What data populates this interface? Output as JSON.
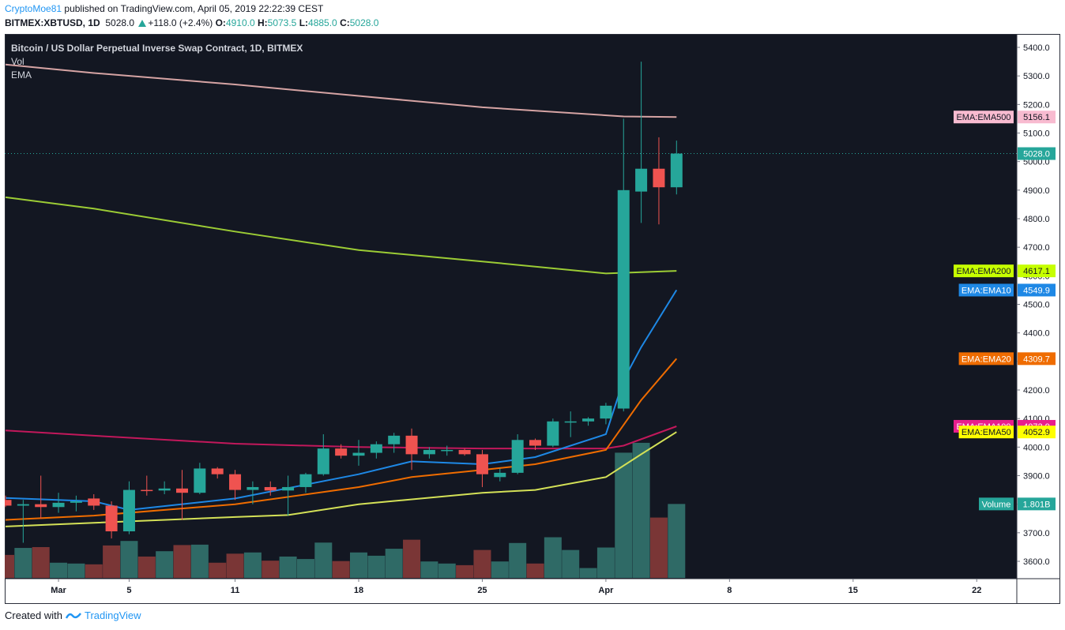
{
  "header": {
    "author": "CryptoMoe81",
    "published": "published on TradingView.com, April 05, 2019 22:22:39 CEST",
    "symbol": "BITMEX:XBTUSD, 1D",
    "last": "5028.0",
    "change": "+118.0 (+2.4%)",
    "o_label": "O:",
    "o_value": "4910.0",
    "h_label": "H:",
    "h_value": "5073.5",
    "l_label": "L:",
    "l_value": "4885.0",
    "c_label": "C:",
    "c_value": "5028.0"
  },
  "footer": {
    "created_with": "Created with",
    "brand": "TradingView"
  },
  "colors": {
    "background": "#131722",
    "up": "#26a69a",
    "down": "#ef5350",
    "ema10": "#1e88e5",
    "ema20": "#ef6c00",
    "ema50": "#d4e157",
    "ema100": "#c2185b",
    "ema200": "#9ccc35",
    "ema500": "#d6a4a4",
    "price_line": "#26a69a"
  },
  "chart_data": {
    "type": "candlestick",
    "title": "Bitcoin / US Dollar Perpetual Inverse Swap Contract, 1D, BITMEX",
    "legend": [
      "Vol",
      "EMA"
    ],
    "ylim": [
      3530,
      5430
    ],
    "y_ticks": [
      "3600.0",
      "3700.0",
      "3800.0",
      "3900.0",
      "4000.0",
      "4100.0",
      "4200.0",
      "4300.0",
      "4400.0",
      "4500.0",
      "4600.0",
      "4700.0",
      "4800.0",
      "4900.0",
      "5000.0",
      "5100.0",
      "5200.0",
      "5300.0",
      "5400.0"
    ],
    "x_ticks": [
      {
        "label": "Mar",
        "date": "2019-03-01"
      },
      {
        "label": "5",
        "date": "2019-03-05"
      },
      {
        "label": "11",
        "date": "2019-03-11"
      },
      {
        "label": "18",
        "date": "2019-03-18"
      },
      {
        "label": "25",
        "date": "2019-03-25"
      },
      {
        "label": "Apr",
        "date": "2019-04-01"
      },
      {
        "label": "8",
        "date": "2019-04-08"
      },
      {
        "label": "15",
        "date": "2019-04-15"
      },
      {
        "label": "22",
        "date": "2019-04-22"
      }
    ],
    "x_range": [
      "2019-02-26",
      "2019-04-27"
    ],
    "candles": [
      {
        "date": "2019-02-26",
        "o": 3815,
        "h": 3830,
        "l": 3790,
        "c": 3795
      },
      {
        "date": "2019-02-27",
        "o": 3795,
        "h": 3815,
        "l": 3665,
        "c": 3800
      },
      {
        "date": "2019-02-28",
        "o": 3800,
        "h": 3900,
        "l": 3750,
        "c": 3790
      },
      {
        "date": "2019-03-01",
        "o": 3790,
        "h": 3840,
        "l": 3770,
        "c": 3805
      },
      {
        "date": "2019-03-02",
        "o": 3805,
        "h": 3830,
        "l": 3775,
        "c": 3810
      },
      {
        "date": "2019-03-03",
        "o": 3820,
        "h": 3835,
        "l": 3780,
        "c": 3795
      },
      {
        "date": "2019-03-04",
        "o": 3795,
        "h": 3810,
        "l": 3680,
        "c": 3705
      },
      {
        "date": "2019-03-05",
        "o": 3705,
        "h": 3880,
        "l": 3695,
        "c": 3850
      },
      {
        "date": "2019-03-06",
        "o": 3850,
        "h": 3900,
        "l": 3830,
        "c": 3848
      },
      {
        "date": "2019-03-07",
        "o": 3848,
        "h": 3880,
        "l": 3835,
        "c": 3855
      },
      {
        "date": "2019-03-08",
        "o": 3855,
        "h": 3920,
        "l": 3745,
        "c": 3840
      },
      {
        "date": "2019-03-09",
        "o": 3840,
        "h": 3945,
        "l": 3835,
        "c": 3925
      },
      {
        "date": "2019-03-10",
        "o": 3925,
        "h": 3930,
        "l": 3890,
        "c": 3905
      },
      {
        "date": "2019-03-11",
        "o": 3905,
        "h": 3920,
        "l": 3815,
        "c": 3850
      },
      {
        "date": "2019-03-12",
        "o": 3850,
        "h": 3880,
        "l": 3800,
        "c": 3860
      },
      {
        "date": "2019-03-13",
        "o": 3860,
        "h": 3880,
        "l": 3830,
        "c": 3848
      },
      {
        "date": "2019-03-14",
        "o": 3848,
        "h": 3900,
        "l": 3760,
        "c": 3860
      },
      {
        "date": "2019-03-15",
        "o": 3860,
        "h": 3910,
        "l": 3840,
        "c": 3905
      },
      {
        "date": "2019-03-16",
        "o": 3905,
        "h": 4045,
        "l": 3900,
        "c": 3995
      },
      {
        "date": "2019-03-17",
        "o": 3995,
        "h": 4010,
        "l": 3960,
        "c": 3970
      },
      {
        "date": "2019-03-18",
        "o": 3970,
        "h": 4025,
        "l": 3935,
        "c": 3980
      },
      {
        "date": "2019-03-19",
        "o": 3980,
        "h": 4020,
        "l": 3960,
        "c": 4010
      },
      {
        "date": "2019-03-20",
        "o": 4010,
        "h": 4050,
        "l": 3980,
        "c": 4040
      },
      {
        "date": "2019-03-21",
        "o": 4040,
        "h": 4065,
        "l": 3920,
        "c": 3975
      },
      {
        "date": "2019-03-22",
        "o": 3975,
        "h": 4000,
        "l": 3960,
        "c": 3990
      },
      {
        "date": "2019-03-23",
        "o": 3990,
        "h": 4005,
        "l": 3970,
        "c": 3990
      },
      {
        "date": "2019-03-24",
        "o": 3990,
        "h": 3995,
        "l": 3970,
        "c": 3975
      },
      {
        "date": "2019-03-25",
        "o": 3975,
        "h": 3990,
        "l": 3860,
        "c": 3905
      },
      {
        "date": "2019-03-26",
        "o": 3895,
        "h": 3925,
        "l": 3880,
        "c": 3910
      },
      {
        "date": "2019-03-27",
        "o": 3910,
        "h": 4045,
        "l": 3905,
        "c": 4025
      },
      {
        "date": "2019-03-28",
        "o": 4025,
        "h": 4030,
        "l": 3990,
        "c": 4005
      },
      {
        "date": "2019-03-29",
        "o": 4005,
        "h": 4100,
        "l": 4000,
        "c": 4090
      },
      {
        "date": "2019-03-30",
        "o": 4090,
        "h": 4125,
        "l": 4035,
        "c": 4090
      },
      {
        "date": "2019-03-31",
        "o": 4090,
        "h": 4105,
        "l": 4075,
        "c": 4100
      },
      {
        "date": "2019-04-01",
        "o": 4100,
        "h": 4155,
        "l": 4080,
        "c": 4145
      },
      {
        "date": "2019-04-02",
        "o": 4135,
        "h": 5150,
        "l": 4125,
        "c": 4900
      },
      {
        "date": "2019-04-03",
        "o": 4895,
        "h": 5350,
        "l": 4785,
        "c": 4975
      },
      {
        "date": "2019-04-04",
        "o": 4975,
        "h": 5085,
        "l": 4780,
        "c": 4910
      },
      {
        "date": "2019-04-05",
        "o": 4910,
        "h": 5073.5,
        "l": 4885,
        "c": 5028
      }
    ],
    "volume_unit": "B",
    "volumes": [
      0.56,
      0.73,
      0.75,
      0.37,
      0.35,
      0.33,
      0.79,
      0.9,
      0.52,
      0.65,
      0.8,
      0.81,
      0.37,
      0.59,
      0.62,
      0.42,
      0.52,
      0.46,
      0.86,
      0.41,
      0.62,
      0.54,
      0.71,
      0.93,
      0.4,
      0.35,
      0.31,
      0.68,
      0.4,
      0.85,
      0.35,
      0.99,
      0.68,
      0.24,
      0.74,
      3.05,
      3.29,
      1.47,
      1.801
    ],
    "ema_series": [
      {
        "name": "EMA500",
        "points": [
          [
            "2019-02-26",
            5340
          ],
          [
            "2019-03-03",
            5310
          ],
          [
            "2019-03-11",
            5270
          ],
          [
            "2019-03-18",
            5230
          ],
          [
            "2019-03-25",
            5190
          ],
          [
            "2019-04-02",
            5158
          ],
          [
            "2019-04-05",
            5156.1
          ]
        ]
      },
      {
        "name": "EMA200",
        "points": [
          [
            "2019-02-26",
            4875
          ],
          [
            "2019-03-03",
            4835
          ],
          [
            "2019-03-11",
            4755
          ],
          [
            "2019-03-18",
            4690
          ],
          [
            "2019-03-25",
            4650
          ],
          [
            "2019-04-01",
            4608
          ],
          [
            "2019-04-05",
            4617.1
          ]
        ]
      },
      {
        "name": "EMA100",
        "points": [
          [
            "2019-02-26",
            4058
          ],
          [
            "2019-03-03",
            4040
          ],
          [
            "2019-03-11",
            4012
          ],
          [
            "2019-03-18",
            4000
          ],
          [
            "2019-03-25",
            3995
          ],
          [
            "2019-04-01",
            3995
          ],
          [
            "2019-04-02",
            4005
          ],
          [
            "2019-04-05",
            4072.9
          ]
        ]
      },
      {
        "name": "EMA50",
        "points": [
          [
            "2019-02-26",
            3722
          ],
          [
            "2019-03-03",
            3735
          ],
          [
            "2019-03-11",
            3755
          ],
          [
            "2019-03-14",
            3762
          ],
          [
            "2019-03-18",
            3800
          ],
          [
            "2019-03-25",
            3840
          ],
          [
            "2019-03-28",
            3850
          ],
          [
            "2019-04-01",
            3895
          ],
          [
            "2019-04-03",
            3975
          ],
          [
            "2019-04-05",
            4052.9
          ]
        ]
      },
      {
        "name": "EMA20",
        "points": [
          [
            "2019-02-26",
            3745
          ],
          [
            "2019-03-03",
            3760
          ],
          [
            "2019-03-11",
            3800
          ],
          [
            "2019-03-18",
            3860
          ],
          [
            "2019-03-21",
            3895
          ],
          [
            "2019-03-25",
            3920
          ],
          [
            "2019-03-28",
            3940
          ],
          [
            "2019-04-01",
            3990
          ],
          [
            "2019-04-03",
            4165
          ],
          [
            "2019-04-05",
            4309.7
          ]
        ]
      },
      {
        "name": "EMA10",
        "points": [
          [
            "2019-02-26",
            3822
          ],
          [
            "2019-03-03",
            3810
          ],
          [
            "2019-03-05",
            3780
          ],
          [
            "2019-03-11",
            3820
          ],
          [
            "2019-03-18",
            3905
          ],
          [
            "2019-03-21",
            3950
          ],
          [
            "2019-03-25",
            3940
          ],
          [
            "2019-03-28",
            3965
          ],
          [
            "2019-04-01",
            4045
          ],
          [
            "2019-04-02",
            4235
          ],
          [
            "2019-04-03",
            4350
          ],
          [
            "2019-04-05",
            4549.9
          ]
        ]
      }
    ],
    "price_line": 5028.0,
    "labels": [
      {
        "series": "EMA500",
        "name": "EMA:EMA500",
        "value": "5156.1",
        "bg": "#f8bbd0",
        "fg": "#131722"
      },
      {
        "series": "EMA200",
        "name": "EMA:EMA200",
        "value": "4617.1",
        "bg": "#c6ff00",
        "fg": "#131722"
      },
      {
        "series": "EMA10",
        "name": "EMA:EMA10",
        "value": "4549.9",
        "bg": "#1e88e5",
        "fg": "#ffffff"
      },
      {
        "series": "EMA20",
        "name": "EMA:EMA20",
        "value": "4309.7",
        "bg": "#ef6c00",
        "fg": "#ffffff"
      },
      {
        "series": "EMA100",
        "name": "EMA:EMA100",
        "value": "4072.9",
        "bg": "#e91e8c",
        "fg": "#ffffff"
      },
      {
        "series": "EMA50",
        "name": "EMA:EMA50",
        "value": "4052.9",
        "bg": "#ffff00",
        "fg": "#131722"
      }
    ],
    "last_price_label": "5028.0",
    "volume_label": {
      "name": "Volume",
      "value": "1.801B"
    }
  }
}
